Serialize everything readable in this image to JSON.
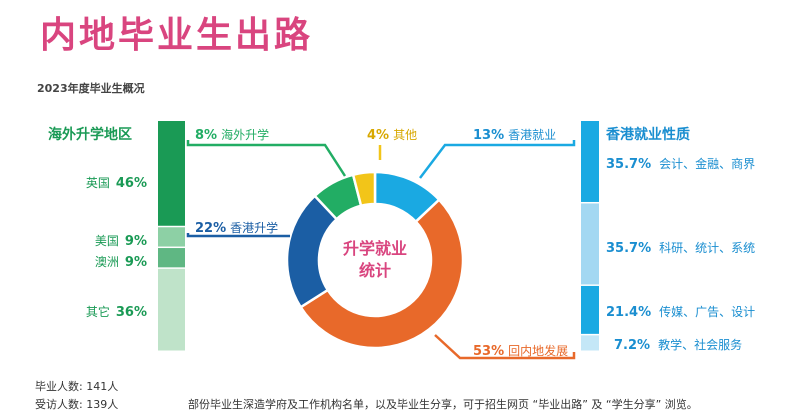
{
  "title": "内地毕业生出路",
  "subtitle": "2023年度毕业生概况",
  "chart_data": [
    {
      "type": "pie",
      "center_label": [
        "升学就业",
        "统计"
      ],
      "slices": [
        {
          "label": "香港就业",
          "value": 13,
          "pct": "13%",
          "color": "#1aa9e2"
        },
        {
          "label": "回内地发展",
          "value": 53,
          "pct": "53%",
          "color": "#e8692a"
        },
        {
          "label": "香港升学",
          "value": 22,
          "pct": "22%",
          "color": "#1b5ea4"
        },
        {
          "label": "海外升学",
          "value": 8,
          "pct": "8%",
          "color": "#22ad64"
        },
        {
          "label": "其他",
          "value": 4,
          "pct": "4%",
          "color": "#f2c519"
        }
      ]
    },
    {
      "type": "bar",
      "title": "海外升学地区",
      "orientation": "stacked-vertical",
      "categories": [
        "英国",
        "美国",
        "澳洲",
        "其它"
      ],
      "values": [
        46,
        9,
        9,
        36
      ],
      "value_labels": [
        "46%",
        "9%",
        "9%",
        "36%"
      ],
      "colors": [
        "#1a9a55",
        "#8dd0a5",
        "#5fb783",
        "#bfe3c9"
      ]
    },
    {
      "type": "bar",
      "title": "香港就业性质",
      "orientation": "stacked-vertical",
      "categories": [
        "会计、金融、商界",
        "科研、统计、系统",
        "传媒、广告、设计",
        "教学、社会服务"
      ],
      "values": [
        35.7,
        35.7,
        21.4,
        7.2
      ],
      "value_labels": [
        "35.7%",
        "35.7%",
        "21.4%",
        "7.2%"
      ],
      "colors": [
        "#1aa9e2",
        "#a3d8f2",
        "#1aa9e2",
        "#c4e7f7"
      ]
    }
  ],
  "footer": {
    "graduates": "毕业人数: 141人",
    "respondents": "受访人数: 139人",
    "note": "部份毕业生深造学府及工作机构名单，以及毕业生分享，可于招生网页 “毕业出路” 及 “学生分享” 浏览。"
  }
}
